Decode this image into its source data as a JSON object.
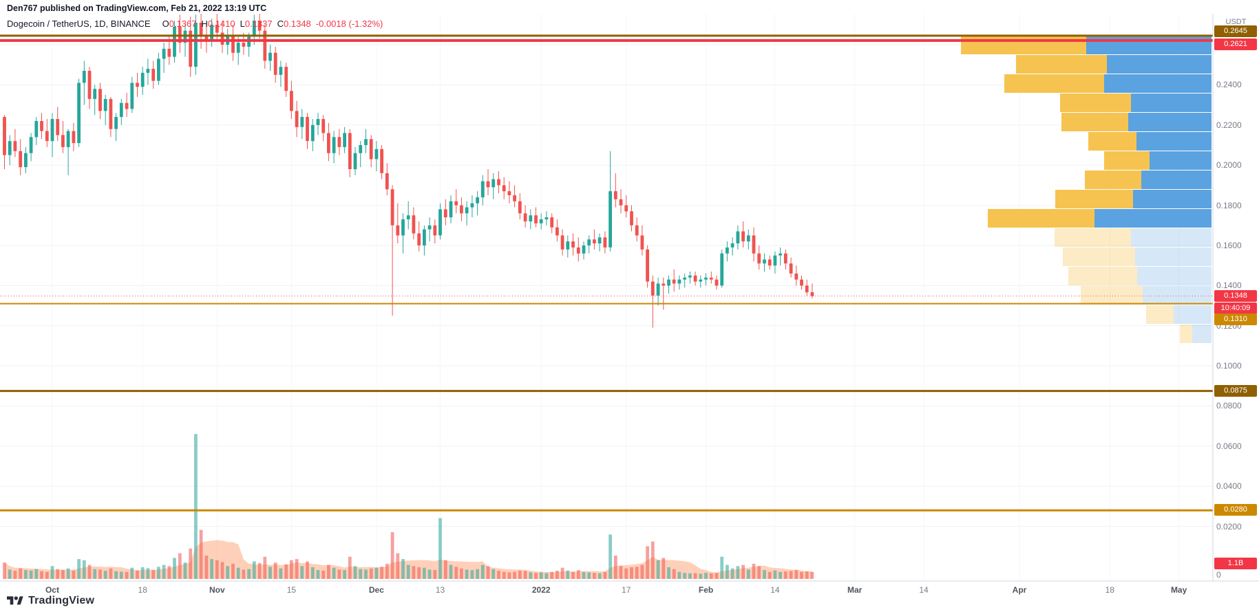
{
  "attribution": "Den767 published on TradingView.com, Feb 21, 2022 13:19 UTC",
  "legend": {
    "symbol": "Dogecoin / TetherUS, 1D, BINANCE",
    "o_label": "O",
    "o": "0.1367",
    "h_label": "H",
    "h": "0.1410",
    "l_label": "L",
    "l": "0.1337",
    "c_label": "C",
    "c": "0.1348",
    "change": "-0.0018 (-1.32%)"
  },
  "current": {
    "price": "0.1348",
    "countdown": "10:40:09"
  },
  "price_axis": {
    "currency": "USDT",
    "volume_badge": {
      "label": "1.1B",
      "color": "#f23645"
    },
    "ticks": [
      {
        "price": 0.24,
        "label": "0.2400"
      },
      {
        "price": 0.22,
        "label": "0.2200"
      },
      {
        "price": 0.2,
        "label": "0.2000"
      },
      {
        "price": 0.18,
        "label": "0.1800"
      },
      {
        "price": 0.16,
        "label": "0.1600"
      },
      {
        "price": 0.14,
        "label": "0.1400"
      },
      {
        "price": 0.12,
        "label": "0.1200"
      },
      {
        "price": 0.1,
        "label": "0.1000"
      },
      {
        "price": 0.08,
        "label": "0.0800"
      },
      {
        "price": 0.06,
        "label": "0.0600"
      },
      {
        "price": 0.04,
        "label": "0.0400"
      },
      {
        "price": 0.02,
        "label": "0.0200"
      },
      {
        "price": 0,
        "label": "0"
      }
    ]
  },
  "time_axis": {
    "ticks": [
      {
        "label": "Oct",
        "day": 9,
        "major": true
      },
      {
        "label": "18",
        "day": 26,
        "major": false
      },
      {
        "label": "Nov",
        "day": 40,
        "major": true
      },
      {
        "label": "15",
        "day": 54,
        "major": false
      },
      {
        "label": "Dec",
        "day": 70,
        "major": true
      },
      {
        "label": "13",
        "day": 82,
        "major": false
      },
      {
        "label": "2022",
        "day": 101,
        "major": true
      },
      {
        "label": "17",
        "day": 117,
        "major": false
      },
      {
        "label": "Feb",
        "day": 132,
        "major": true
      },
      {
        "label": "14",
        "day": 145,
        "major": false
      },
      {
        "label": "Mar",
        "day": 160,
        "major": true
      },
      {
        "label": "14",
        "day": 173,
        "major": false
      },
      {
        "label": "Apr",
        "day": 191,
        "major": true
      },
      {
        "label": "18",
        "day": 208,
        "major": false
      },
      {
        "label": "May",
        "day": 221,
        "major": true
      }
    ]
  },
  "footer": {
    "brand": "TradingView"
  },
  "colors": {
    "up": "#26a69a",
    "down": "#ef5350",
    "up_vol": "rgba(38,166,154,0.55)",
    "down_vol": "rgba(239,83,80,0.55)",
    "vol_ma_area": "rgba(255,143,87,0.42)",
    "grid": "#eef1f6",
    "grid_v": "#f4f6fa",
    "axis_text": "#787b86",
    "axis_line": "#d1d4dc",
    "profile_yellow": "#f6c350",
    "profile_blue": "#5ba2e0",
    "profile_yellow_faded": "rgba(246,195,80,0.33)",
    "profile_blue_faded": "rgba(91,162,224,0.25)",
    "label_red": "#f23645",
    "label_brown": "#8f5f00",
    "label_orange": "#cc8800"
  },
  "chart_data": {
    "type": "candlestick",
    "symbol": "DOGEUSDT",
    "exchange": "BINANCE",
    "interval": "1D",
    "start_date": "2021-09-22",
    "end_date": "2022-02-21",
    "visible_price_range": [
      0,
      0.2747
    ],
    "volume_unit": "B",
    "candles": [
      [
        0.224,
        0.225,
        0.198,
        0.205,
        0.7
      ],
      [
        0.205,
        0.215,
        0.2,
        0.212,
        0.4
      ],
      [
        0.212,
        0.218,
        0.204,
        0.207,
        0.35
      ],
      [
        0.207,
        0.213,
        0.195,
        0.199,
        0.45
      ],
      [
        0.199,
        0.209,
        0.196,
        0.206,
        0.38
      ],
      [
        0.206,
        0.216,
        0.202,
        0.214,
        0.36
      ],
      [
        0.214,
        0.224,
        0.21,
        0.222,
        0.42
      ],
      [
        0.222,
        0.226,
        0.213,
        0.217,
        0.33
      ],
      [
        0.217,
        0.223,
        0.209,
        0.212,
        0.3
      ],
      [
        0.212,
        0.226,
        0.204,
        0.223,
        0.55
      ],
      [
        0.223,
        0.229,
        0.212,
        0.215,
        0.42
      ],
      [
        0.215,
        0.222,
        0.206,
        0.209,
        0.38
      ],
      [
        0.209,
        0.218,
        0.195,
        0.217,
        0.45
      ],
      [
        0.217,
        0.221,
        0.207,
        0.211,
        0.36
      ],
      [
        0.211,
        0.243,
        0.209,
        0.241,
        0.85
      ],
      [
        0.241,
        0.252,
        0.23,
        0.247,
        0.8
      ],
      [
        0.247,
        0.249,
        0.228,
        0.233,
        0.6
      ],
      [
        0.233,
        0.24,
        0.225,
        0.238,
        0.42
      ],
      [
        0.238,
        0.241,
        0.223,
        0.227,
        0.4
      ],
      [
        0.227,
        0.235,
        0.22,
        0.233,
        0.35
      ],
      [
        0.233,
        0.234,
        0.214,
        0.218,
        0.45
      ],
      [
        0.218,
        0.226,
        0.212,
        0.224,
        0.33
      ],
      [
        0.224,
        0.233,
        0.22,
        0.231,
        0.31
      ],
      [
        0.231,
        0.236,
        0.224,
        0.228,
        0.3
      ],
      [
        0.228,
        0.244,
        0.226,
        0.241,
        0.48
      ],
      [
        0.241,
        0.246,
        0.234,
        0.239,
        0.36
      ],
      [
        0.239,
        0.249,
        0.235,
        0.246,
        0.5
      ],
      [
        0.246,
        0.253,
        0.24,
        0.248,
        0.46
      ],
      [
        0.248,
        0.252,
        0.238,
        0.242,
        0.38
      ],
      [
        0.242,
        0.256,
        0.24,
        0.253,
        0.52
      ],
      [
        0.253,
        0.261,
        0.246,
        0.258,
        0.6
      ],
      [
        0.258,
        0.265,
        0.25,
        0.254,
        0.55
      ],
      [
        0.254,
        0.272,
        0.251,
        0.269,
        0.9
      ],
      [
        0.269,
        0.275,
        0.256,
        0.261,
        1.1
      ],
      [
        0.261,
        0.27,
        0.254,
        0.267,
        0.7
      ],
      [
        0.267,
        0.274,
        0.244,
        0.249,
        1.3
      ],
      [
        0.249,
        0.275,
        0.245,
        0.271,
        6.2
      ],
      [
        0.271,
        0.276,
        0.258,
        0.264,
        2.1
      ],
      [
        0.264,
        0.27,
        0.256,
        0.262,
        1.0
      ],
      [
        0.262,
        0.273,
        0.259,
        0.27,
        0.85
      ],
      [
        0.27,
        0.276,
        0.262,
        0.266,
        0.8
      ],
      [
        0.266,
        0.272,
        0.256,
        0.26,
        0.72
      ],
      [
        0.26,
        0.268,
        0.255,
        0.265,
        0.55
      ],
      [
        0.265,
        0.27,
        0.252,
        0.256,
        0.65
      ],
      [
        0.256,
        0.264,
        0.25,
        0.261,
        0.48
      ],
      [
        0.261,
        0.266,
        0.255,
        0.259,
        0.4
      ],
      [
        0.259,
        0.266,
        0.254,
        0.264,
        0.42
      ],
      [
        0.264,
        0.275,
        0.26,
        0.272,
        0.75
      ],
      [
        0.272,
        0.277,
        0.263,
        0.267,
        0.68
      ],
      [
        0.267,
        0.27,
        0.248,
        0.252,
        0.95
      ],
      [
        0.252,
        0.26,
        0.247,
        0.256,
        0.52
      ],
      [
        0.256,
        0.259,
        0.241,
        0.245,
        0.7
      ],
      [
        0.245,
        0.252,
        0.239,
        0.249,
        0.45
      ],
      [
        0.249,
        0.251,
        0.234,
        0.237,
        0.62
      ],
      [
        0.237,
        0.242,
        0.223,
        0.227,
        0.8
      ],
      [
        0.227,
        0.232,
        0.214,
        0.219,
        0.85
      ],
      [
        0.219,
        0.228,
        0.213,
        0.224,
        0.55
      ],
      [
        0.224,
        0.226,
        0.208,
        0.212,
        0.75
      ],
      [
        0.212,
        0.223,
        0.207,
        0.22,
        0.5
      ],
      [
        0.22,
        0.226,
        0.215,
        0.223,
        0.38
      ],
      [
        0.223,
        0.225,
        0.212,
        0.216,
        0.36
      ],
      [
        0.216,
        0.221,
        0.202,
        0.206,
        0.6
      ],
      [
        0.206,
        0.217,
        0.201,
        0.214,
        0.48
      ],
      [
        0.214,
        0.218,
        0.205,
        0.209,
        0.4
      ],
      [
        0.209,
        0.219,
        0.206,
        0.216,
        0.38
      ],
      [
        0.216,
        0.218,
        0.194,
        0.198,
        0.95
      ],
      [
        0.198,
        0.209,
        0.195,
        0.206,
        0.55
      ],
      [
        0.206,
        0.212,
        0.199,
        0.21,
        0.42
      ],
      [
        0.21,
        0.218,
        0.206,
        0.213,
        0.4
      ],
      [
        0.213,
        0.215,
        0.199,
        0.203,
        0.45
      ],
      [
        0.203,
        0.212,
        0.197,
        0.208,
        0.48
      ],
      [
        0.208,
        0.21,
        0.193,
        0.196,
        0.52
      ],
      [
        0.196,
        0.201,
        0.185,
        0.188,
        0.65
      ],
      [
        0.188,
        0.19,
        0.125,
        0.17,
        2.0
      ],
      [
        0.17,
        0.181,
        0.161,
        0.165,
        1.1
      ],
      [
        0.165,
        0.176,
        0.156,
        0.173,
        0.85
      ],
      [
        0.173,
        0.182,
        0.168,
        0.175,
        0.6
      ],
      [
        0.175,
        0.179,
        0.163,
        0.166,
        0.55
      ],
      [
        0.166,
        0.172,
        0.157,
        0.16,
        0.5
      ],
      [
        0.16,
        0.17,
        0.155,
        0.168,
        0.48
      ],
      [
        0.168,
        0.174,
        0.162,
        0.17,
        0.4
      ],
      [
        0.17,
        0.173,
        0.161,
        0.165,
        0.38
      ],
      [
        0.165,
        0.181,
        0.163,
        0.178,
        2.6
      ],
      [
        0.178,
        0.183,
        0.17,
        0.174,
        0.8
      ],
      [
        0.174,
        0.185,
        0.171,
        0.182,
        0.6
      ],
      [
        0.182,
        0.188,
        0.176,
        0.18,
        0.52
      ],
      [
        0.18,
        0.184,
        0.172,
        0.176,
        0.45
      ],
      [
        0.176,
        0.182,
        0.17,
        0.179,
        0.4
      ],
      [
        0.179,
        0.185,
        0.174,
        0.181,
        0.38
      ],
      [
        0.181,
        0.187,
        0.175,
        0.184,
        0.42
      ],
      [
        0.184,
        0.195,
        0.18,
        0.192,
        0.6
      ],
      [
        0.192,
        0.198,
        0.185,
        0.189,
        0.55
      ],
      [
        0.189,
        0.196,
        0.183,
        0.193,
        0.42
      ],
      [
        0.193,
        0.197,
        0.186,
        0.19,
        0.35
      ],
      [
        0.19,
        0.194,
        0.183,
        0.187,
        0.3
      ],
      [
        0.187,
        0.192,
        0.181,
        0.185,
        0.28
      ],
      [
        0.185,
        0.19,
        0.179,
        0.182,
        0.3
      ],
      [
        0.182,
        0.186,
        0.173,
        0.176,
        0.36
      ],
      [
        0.176,
        0.18,
        0.169,
        0.172,
        0.34
      ],
      [
        0.172,
        0.178,
        0.168,
        0.175,
        0.28
      ],
      [
        0.175,
        0.179,
        0.169,
        0.171,
        0.26
      ],
      [
        0.171,
        0.176,
        0.168,
        0.173,
        0.28
      ],
      [
        0.173,
        0.177,
        0.17,
        0.174,
        0.25
      ],
      [
        0.174,
        0.176,
        0.166,
        0.169,
        0.3
      ],
      [
        0.169,
        0.173,
        0.162,
        0.165,
        0.35
      ],
      [
        0.165,
        0.168,
        0.155,
        0.158,
        0.48
      ],
      [
        0.158,
        0.165,
        0.154,
        0.162,
        0.36
      ],
      [
        0.162,
        0.166,
        0.155,
        0.159,
        0.3
      ],
      [
        0.159,
        0.164,
        0.152,
        0.156,
        0.38
      ],
      [
        0.156,
        0.162,
        0.153,
        0.16,
        0.3
      ],
      [
        0.16,
        0.165,
        0.156,
        0.163,
        0.28
      ],
      [
        0.163,
        0.168,
        0.158,
        0.161,
        0.26
      ],
      [
        0.161,
        0.166,
        0.157,
        0.164,
        0.24
      ],
      [
        0.164,
        0.167,
        0.156,
        0.159,
        0.3
      ],
      [
        0.159,
        0.207,
        0.157,
        0.187,
        1.9
      ],
      [
        0.187,
        0.196,
        0.179,
        0.183,
        1.0
      ],
      [
        0.183,
        0.188,
        0.176,
        0.18,
        0.55
      ],
      [
        0.18,
        0.185,
        0.174,
        0.177,
        0.45
      ],
      [
        0.177,
        0.18,
        0.167,
        0.17,
        0.5
      ],
      [
        0.17,
        0.174,
        0.162,
        0.165,
        0.52
      ],
      [
        0.165,
        0.17,
        0.155,
        0.158,
        0.6
      ],
      [
        0.158,
        0.16,
        0.139,
        0.142,
        1.4
      ],
      [
        0.142,
        0.145,
        0.119,
        0.135,
        1.6
      ],
      [
        0.135,
        0.144,
        0.13,
        0.141,
        0.8
      ],
      [
        0.141,
        0.144,
        0.128,
        0.14,
        0.9
      ],
      [
        0.14,
        0.145,
        0.136,
        0.143,
        0.5
      ],
      [
        0.143,
        0.148,
        0.137,
        0.141,
        0.42
      ],
      [
        0.141,
        0.145,
        0.138,
        0.143,
        0.3
      ],
      [
        0.143,
        0.146,
        0.139,
        0.144,
        0.26
      ],
      [
        0.144,
        0.147,
        0.141,
        0.145,
        0.24
      ],
      [
        0.145,
        0.147,
        0.14,
        0.142,
        0.25
      ],
      [
        0.142,
        0.145,
        0.139,
        0.143,
        0.22
      ],
      [
        0.143,
        0.146,
        0.14,
        0.144,
        0.26
      ],
      [
        0.144,
        0.147,
        0.141,
        0.143,
        0.24
      ],
      [
        0.143,
        0.145,
        0.138,
        0.14,
        0.26
      ],
      [
        0.14,
        0.158,
        0.139,
        0.156,
        0.95
      ],
      [
        0.156,
        0.162,
        0.152,
        0.159,
        0.6
      ],
      [
        0.159,
        0.164,
        0.155,
        0.161,
        0.45
      ],
      [
        0.161,
        0.17,
        0.158,
        0.167,
        0.55
      ],
      [
        0.167,
        0.172,
        0.159,
        0.162,
        0.6
      ],
      [
        0.162,
        0.168,
        0.158,
        0.165,
        0.4
      ],
      [
        0.165,
        0.169,
        0.152,
        0.156,
        0.65
      ],
      [
        0.156,
        0.16,
        0.148,
        0.151,
        0.55
      ],
      [
        0.151,
        0.156,
        0.147,
        0.153,
        0.38
      ],
      [
        0.153,
        0.155,
        0.148,
        0.15,
        0.3
      ],
      [
        0.15,
        0.157,
        0.146,
        0.155,
        0.36
      ],
      [
        0.155,
        0.159,
        0.15,
        0.156,
        0.3
      ],
      [
        0.156,
        0.158,
        0.148,
        0.151,
        0.32
      ],
      [
        0.151,
        0.154,
        0.144,
        0.146,
        0.34
      ],
      [
        0.146,
        0.15,
        0.14,
        0.143,
        0.38
      ],
      [
        0.143,
        0.145,
        0.138,
        0.14,
        0.3
      ],
      [
        0.14,
        0.143,
        0.135,
        0.1366,
        0.32
      ],
      [
        0.1367,
        0.141,
        0.1337,
        0.1348,
        0.3
      ]
    ],
    "levels": [
      {
        "price": 0.2645,
        "label": "0.2645",
        "color": "#8f5f00",
        "line_width": 3,
        "style": "solid",
        "badge_dy": -6
      },
      {
        "price": 0.2621,
        "label": "0.2621",
        "color": "#f23645",
        "line_width": 4,
        "style": "solid",
        "badge_dy": 6
      },
      {
        "price": 0.1348,
        "label": "0.1348",
        "color": "#f23645",
        "line_width": 1,
        "style": "dotted",
        "badge_dy": 0,
        "countdown": "10:40:09",
        "is_current": true
      },
      {
        "price": 0.131,
        "label": "0.1310",
        "color": "#cc8800",
        "line_width": 2,
        "style": "solid",
        "badge_dy": 23
      },
      {
        "price": 0.0875,
        "label": "0.0875",
        "color": "#8f5f00",
        "line_width": 3,
        "style": "solid",
        "badge_dy": 0
      },
      {
        "price": 0.028,
        "label": "0.0280",
        "color": "#cc8800",
        "line_width": 3,
        "style": "solid",
        "badge_dy": 0
      }
    ],
    "volume_profile": {
      "price_top": 0.2645,
      "row_height_price": 0.0096,
      "rows": [
        [
          182,
          182,
          0
        ],
        [
          132,
          152,
          0
        ],
        [
          145,
          156,
          0
        ],
        [
          103,
          117,
          0
        ],
        [
          97,
          121,
          0
        ],
        [
          70,
          109,
          0
        ],
        [
          66,
          90,
          0
        ],
        [
          82,
          102,
          0
        ],
        [
          113,
          114,
          0
        ],
        [
          155,
          170,
          0
        ],
        [
          111,
          117,
          1
        ],
        [
          105,
          111,
          1
        ],
        [
          100,
          108,
          1
        ],
        [
          90,
          100,
          1
        ],
        [
          40,
          55,
          1
        ],
        [
          18,
          28,
          1
        ]
      ]
    }
  }
}
